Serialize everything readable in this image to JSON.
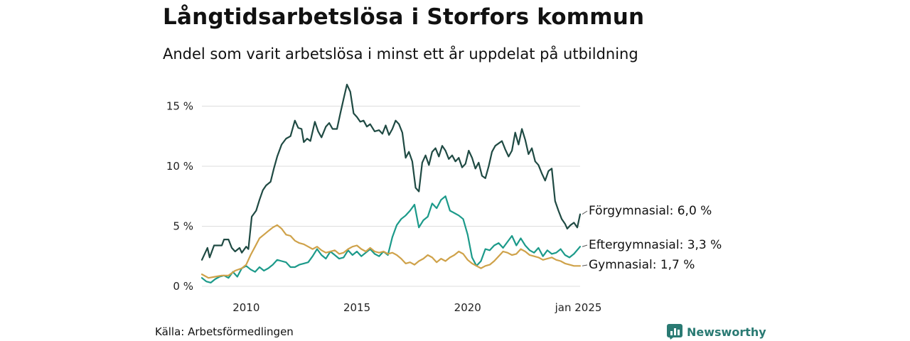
{
  "page": {
    "title": "Långtidsarbetslösa i Storfors kommun",
    "subtitle": "Andel som varit arbetslösa i minst ett år uppdelat på utbildning",
    "source": "Källa: Arbetsförmedlingen",
    "brand": "Newsworthy",
    "brand_icon": "bar-chart-icon"
  },
  "chart_data": {
    "type": "line",
    "title": "Långtidsarbetslösa i Storfors kommun",
    "subtitle": "Andel som varit arbetslösa i minst ett år uppdelat på utbildning",
    "xlabel": "",
    "ylabel": "",
    "x_range": [
      2008.0,
      2025.08
    ],
    "ylim": [
      0,
      16.8
    ],
    "grid": true,
    "y_ticks": [
      {
        "value": 0,
        "label": "0 %"
      },
      {
        "value": 5,
        "label": "5 %"
      },
      {
        "value": 10,
        "label": "10 %"
      },
      {
        "value": 15,
        "label": "15 %"
      }
    ],
    "x_ticks": [
      {
        "value": 2010,
        "label": "2010"
      },
      {
        "value": 2015,
        "label": "2015"
      },
      {
        "value": 2020,
        "label": "2020"
      },
      {
        "value": 2025.0,
        "label": "jan 2025"
      }
    ],
    "series": [
      {
        "name": "Förgymnasial",
        "end_label": "Förgymnasial: 6,0 %",
        "color": "#1f4a43",
        "points": [
          [
            2008.0,
            2.2
          ],
          [
            2008.25,
            3.2
          ],
          [
            2008.35,
            2.4
          ],
          [
            2008.55,
            3.4
          ],
          [
            2008.9,
            3.4
          ],
          [
            2009.0,
            3.9
          ],
          [
            2009.2,
            3.9
          ],
          [
            2009.35,
            3.2
          ],
          [
            2009.5,
            2.9
          ],
          [
            2009.7,
            3.2
          ],
          [
            2009.8,
            2.8
          ],
          [
            2010.0,
            3.3
          ],
          [
            2010.1,
            3.1
          ],
          [
            2010.25,
            5.8
          ],
          [
            2010.45,
            6.3
          ],
          [
            2010.6,
            7.2
          ],
          [
            2010.75,
            8.0
          ],
          [
            2010.9,
            8.4
          ],
          [
            2011.1,
            8.7
          ],
          [
            2011.25,
            9.8
          ],
          [
            2011.4,
            10.8
          ],
          [
            2011.6,
            11.8
          ],
          [
            2011.8,
            12.3
          ],
          [
            2012.0,
            12.5
          ],
          [
            2012.2,
            13.8
          ],
          [
            2012.35,
            13.2
          ],
          [
            2012.5,
            13.1
          ],
          [
            2012.6,
            12.0
          ],
          [
            2012.75,
            12.3
          ],
          [
            2012.9,
            12.1
          ],
          [
            2013.1,
            13.7
          ],
          [
            2013.25,
            12.9
          ],
          [
            2013.4,
            12.4
          ],
          [
            2013.6,
            13.3
          ],
          [
            2013.75,
            13.6
          ],
          [
            2013.9,
            13.1
          ],
          [
            2014.1,
            13.1
          ],
          [
            2014.25,
            14.4
          ],
          [
            2014.4,
            15.6
          ],
          [
            2014.55,
            16.8
          ],
          [
            2014.7,
            16.2
          ],
          [
            2014.85,
            14.4
          ],
          [
            2015.0,
            14.1
          ],
          [
            2015.15,
            13.7
          ],
          [
            2015.3,
            13.8
          ],
          [
            2015.45,
            13.3
          ],
          [
            2015.6,
            13.5
          ],
          [
            2015.8,
            12.9
          ],
          [
            2016.0,
            13.0
          ],
          [
            2016.15,
            12.7
          ],
          [
            2016.3,
            13.4
          ],
          [
            2016.45,
            12.6
          ],
          [
            2016.6,
            13.1
          ],
          [
            2016.75,
            13.8
          ],
          [
            2016.9,
            13.5
          ],
          [
            2017.05,
            12.8
          ],
          [
            2017.2,
            10.7
          ],
          [
            2017.35,
            11.2
          ],
          [
            2017.5,
            10.4
          ],
          [
            2017.65,
            8.2
          ],
          [
            2017.8,
            7.9
          ],
          [
            2017.95,
            10.3
          ],
          [
            2018.1,
            10.9
          ],
          [
            2018.25,
            10.1
          ],
          [
            2018.4,
            11.2
          ],
          [
            2018.55,
            11.5
          ],
          [
            2018.7,
            10.8
          ],
          [
            2018.85,
            11.7
          ],
          [
            2019.0,
            11.3
          ],
          [
            2019.15,
            10.6
          ],
          [
            2019.3,
            10.9
          ],
          [
            2019.45,
            10.4
          ],
          [
            2019.6,
            10.7
          ],
          [
            2019.75,
            9.9
          ],
          [
            2019.9,
            10.2
          ],
          [
            2020.05,
            11.3
          ],
          [
            2020.2,
            10.7
          ],
          [
            2020.35,
            9.8
          ],
          [
            2020.5,
            10.3
          ],
          [
            2020.65,
            9.2
          ],
          [
            2020.8,
            9.0
          ],
          [
            2020.95,
            10.0
          ],
          [
            2021.1,
            11.2
          ],
          [
            2021.25,
            11.7
          ],
          [
            2021.4,
            11.9
          ],
          [
            2021.55,
            12.1
          ],
          [
            2021.7,
            11.4
          ],
          [
            2021.85,
            10.8
          ],
          [
            2022.0,
            11.3
          ],
          [
            2022.15,
            12.8
          ],
          [
            2022.3,
            11.8
          ],
          [
            2022.45,
            13.1
          ],
          [
            2022.6,
            12.2
          ],
          [
            2022.75,
            11.0
          ],
          [
            2022.9,
            11.5
          ],
          [
            2023.05,
            10.4
          ],
          [
            2023.2,
            10.1
          ],
          [
            2023.35,
            9.4
          ],
          [
            2023.5,
            8.8
          ],
          [
            2023.65,
            9.6
          ],
          [
            2023.8,
            9.8
          ],
          [
            2023.95,
            7.1
          ],
          [
            2024.1,
            6.3
          ],
          [
            2024.25,
            5.6
          ],
          [
            2024.4,
            5.2
          ],
          [
            2024.5,
            4.8
          ],
          [
            2024.65,
            5.1
          ],
          [
            2024.8,
            5.3
          ],
          [
            2024.95,
            4.9
          ],
          [
            2025.08,
            6.0
          ]
        ]
      },
      {
        "name": "Eftergymnasial",
        "end_label": "Eftergymnasial: 3,3 %",
        "color": "#1c9a8a",
        "points": [
          [
            2008.0,
            0.7
          ],
          [
            2008.2,
            0.4
          ],
          [
            2008.4,
            0.3
          ],
          [
            2008.6,
            0.6
          ],
          [
            2008.8,
            0.8
          ],
          [
            2009.0,
            0.9
          ],
          [
            2009.2,
            0.7
          ],
          [
            2009.4,
            1.2
          ],
          [
            2009.6,
            0.8
          ],
          [
            2009.8,
            1.5
          ],
          [
            2010.0,
            1.7
          ],
          [
            2010.2,
            1.4
          ],
          [
            2010.4,
            1.2
          ],
          [
            2010.6,
            1.6
          ],
          [
            2010.8,
            1.3
          ],
          [
            2011.0,
            1.5
          ],
          [
            2011.2,
            1.8
          ],
          [
            2011.4,
            2.2
          ],
          [
            2011.6,
            2.1
          ],
          [
            2011.8,
            2.0
          ],
          [
            2012.0,
            1.6
          ],
          [
            2012.2,
            1.6
          ],
          [
            2012.4,
            1.8
          ],
          [
            2012.6,
            1.9
          ],
          [
            2012.8,
            2.0
          ],
          [
            2013.0,
            2.5
          ],
          [
            2013.2,
            3.1
          ],
          [
            2013.4,
            2.6
          ],
          [
            2013.6,
            2.3
          ],
          [
            2013.8,
            2.9
          ],
          [
            2014.0,
            2.6
          ],
          [
            2014.2,
            2.3
          ],
          [
            2014.4,
            2.4
          ],
          [
            2014.6,
            3.0
          ],
          [
            2014.8,
            2.6
          ],
          [
            2015.0,
            2.9
          ],
          [
            2015.2,
            2.5
          ],
          [
            2015.4,
            2.8
          ],
          [
            2015.6,
            3.1
          ],
          [
            2015.8,
            2.7
          ],
          [
            2016.0,
            2.5
          ],
          [
            2016.2,
            2.9
          ],
          [
            2016.4,
            2.6
          ],
          [
            2016.6,
            4.1
          ],
          [
            2016.8,
            5.1
          ],
          [
            2017.0,
            5.6
          ],
          [
            2017.2,
            5.9
          ],
          [
            2017.4,
            6.3
          ],
          [
            2017.6,
            6.8
          ],
          [
            2017.8,
            4.9
          ],
          [
            2018.0,
            5.5
          ],
          [
            2018.2,
            5.8
          ],
          [
            2018.4,
            6.9
          ],
          [
            2018.6,
            6.5
          ],
          [
            2018.8,
            7.2
          ],
          [
            2019.0,
            7.5
          ],
          [
            2019.2,
            6.3
          ],
          [
            2019.4,
            6.1
          ],
          [
            2019.6,
            5.9
          ],
          [
            2019.8,
            5.6
          ],
          [
            2020.0,
            4.3
          ],
          [
            2020.2,
            2.4
          ],
          [
            2020.4,
            1.7
          ],
          [
            2020.6,
            2.1
          ],
          [
            2020.8,
            3.1
          ],
          [
            2021.0,
            3.0
          ],
          [
            2021.2,
            3.4
          ],
          [
            2021.4,
            3.6
          ],
          [
            2021.6,
            3.2
          ],
          [
            2021.8,
            3.7
          ],
          [
            2022.0,
            4.2
          ],
          [
            2022.2,
            3.4
          ],
          [
            2022.4,
            4.0
          ],
          [
            2022.6,
            3.4
          ],
          [
            2022.8,
            3.0
          ],
          [
            2023.0,
            2.8
          ],
          [
            2023.2,
            3.2
          ],
          [
            2023.4,
            2.5
          ],
          [
            2023.6,
            3.0
          ],
          [
            2023.8,
            2.7
          ],
          [
            2024.0,
            2.8
          ],
          [
            2024.2,
            3.1
          ],
          [
            2024.4,
            2.6
          ],
          [
            2024.6,
            2.4
          ],
          [
            2024.8,
            2.7
          ],
          [
            2025.08,
            3.3
          ]
        ]
      },
      {
        "name": "Gymnasial",
        "end_label": "Gymnasial: 1,7 %",
        "color": "#cfa24a",
        "points": [
          [
            2008.0,
            1.0
          ],
          [
            2008.3,
            0.7
          ],
          [
            2008.6,
            0.8
          ],
          [
            2008.9,
            0.9
          ],
          [
            2009.2,
            0.9
          ],
          [
            2009.5,
            1.3
          ],
          [
            2009.8,
            1.5
          ],
          [
            2010.0,
            1.8
          ],
          [
            2010.2,
            2.6
          ],
          [
            2010.4,
            3.3
          ],
          [
            2010.6,
            4.0
          ],
          [
            2010.8,
            4.3
          ],
          [
            2011.0,
            4.6
          ],
          [
            2011.2,
            4.9
          ],
          [
            2011.4,
            5.1
          ],
          [
            2011.6,
            4.8
          ],
          [
            2011.8,
            4.3
          ],
          [
            2012.0,
            4.2
          ],
          [
            2012.2,
            3.8
          ],
          [
            2012.4,
            3.6
          ],
          [
            2012.6,
            3.5
          ],
          [
            2012.8,
            3.3
          ],
          [
            2013.0,
            3.1
          ],
          [
            2013.2,
            3.3
          ],
          [
            2013.4,
            3.0
          ],
          [
            2013.6,
            2.8
          ],
          [
            2013.8,
            2.9
          ],
          [
            2014.0,
            3.0
          ],
          [
            2014.2,
            2.7
          ],
          [
            2014.4,
            2.8
          ],
          [
            2014.6,
            3.1
          ],
          [
            2014.8,
            3.3
          ],
          [
            2015.0,
            3.4
          ],
          [
            2015.2,
            3.1
          ],
          [
            2015.4,
            2.9
          ],
          [
            2015.6,
            3.2
          ],
          [
            2015.8,
            2.9
          ],
          [
            2016.0,
            2.8
          ],
          [
            2016.2,
            2.9
          ],
          [
            2016.4,
            2.7
          ],
          [
            2016.6,
            2.8
          ],
          [
            2016.8,
            2.6
          ],
          [
            2017.0,
            2.3
          ],
          [
            2017.2,
            1.9
          ],
          [
            2017.4,
            2.0
          ],
          [
            2017.6,
            1.8
          ],
          [
            2017.8,
            2.1
          ],
          [
            2018.0,
            2.3
          ],
          [
            2018.2,
            2.6
          ],
          [
            2018.4,
            2.4
          ],
          [
            2018.6,
            2.0
          ],
          [
            2018.8,
            2.3
          ],
          [
            2019.0,
            2.1
          ],
          [
            2019.2,
            2.4
          ],
          [
            2019.4,
            2.6
          ],
          [
            2019.6,
            2.9
          ],
          [
            2019.8,
            2.7
          ],
          [
            2020.0,
            2.2
          ],
          [
            2020.2,
            1.9
          ],
          [
            2020.4,
            1.7
          ],
          [
            2020.6,
            1.5
          ],
          [
            2020.8,
            1.7
          ],
          [
            2021.0,
            1.8
          ],
          [
            2021.2,
            2.1
          ],
          [
            2021.4,
            2.5
          ],
          [
            2021.6,
            2.9
          ],
          [
            2021.8,
            2.8
          ],
          [
            2022.0,
            2.6
          ],
          [
            2022.2,
            2.7
          ],
          [
            2022.4,
            3.1
          ],
          [
            2022.6,
            2.9
          ],
          [
            2022.8,
            2.6
          ],
          [
            2023.0,
            2.5
          ],
          [
            2023.2,
            2.4
          ],
          [
            2023.4,
            2.2
          ],
          [
            2023.6,
            2.3
          ],
          [
            2023.8,
            2.4
          ],
          [
            2024.0,
            2.2
          ],
          [
            2024.2,
            2.1
          ],
          [
            2024.4,
            1.9
          ],
          [
            2024.6,
            1.8
          ],
          [
            2024.8,
            1.7
          ],
          [
            2025.08,
            1.7
          ]
        ]
      }
    ]
  }
}
